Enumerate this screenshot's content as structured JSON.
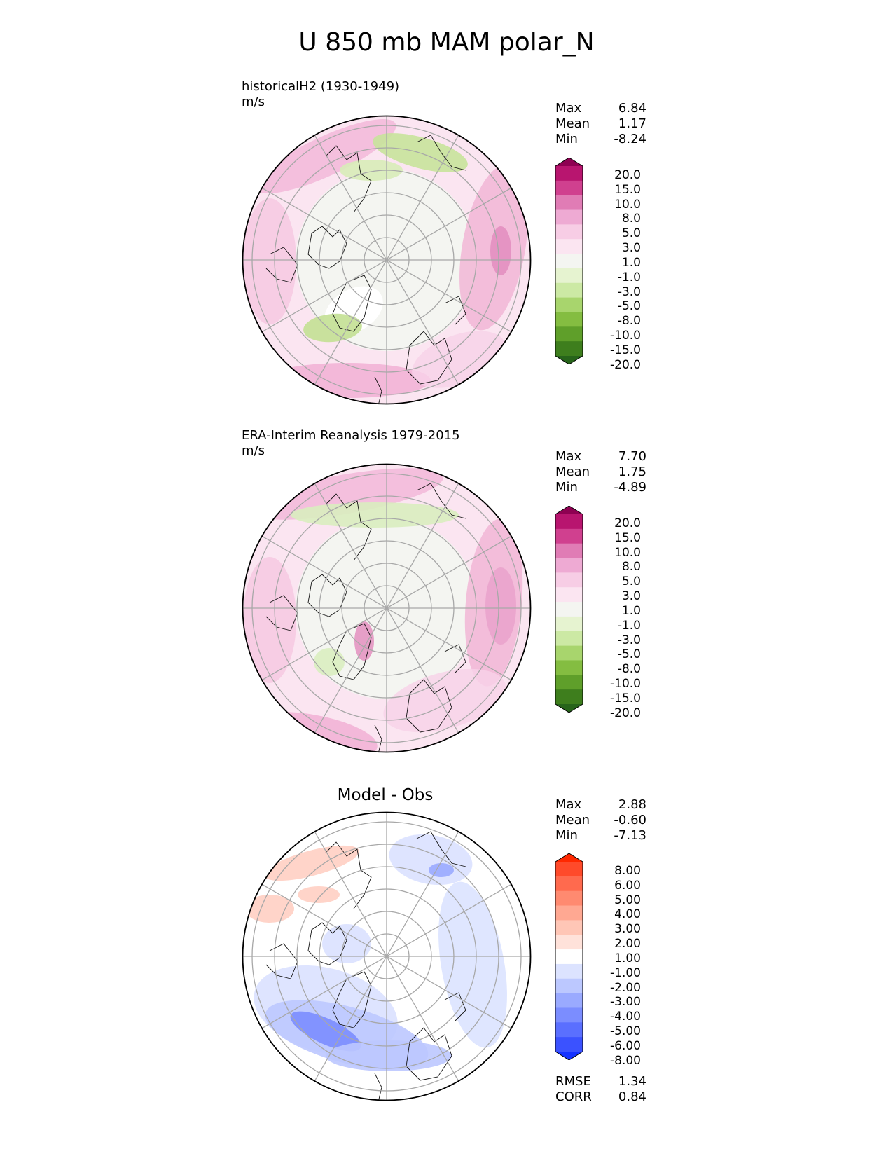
{
  "figure": {
    "title": "U 850 mb MAM polar_N"
  },
  "panels": [
    {
      "id": "model",
      "title": "historicalH2 (1930-1949)",
      "units": "m/s",
      "stats": [
        {
          "label": "Max",
          "value": "6.84"
        },
        {
          "label": "Mean",
          "value": "1.17"
        },
        {
          "label": "Min",
          "value": "-8.24"
        }
      ],
      "colorbar": {
        "labels": [
          "20.0",
          "15.0",
          "10.0",
          "8.0",
          "5.0",
          "3.0",
          "1.0",
          "-1.0",
          "-3.0",
          "-5.0",
          "-8.0",
          "-10.0",
          "-15.0",
          "-20.0"
        ],
        "colors": [
          "#8e0152",
          "#b8156f",
          "#d0408f",
          "#e07cb5",
          "#eeaad3",
          "#f7cde5",
          "#fbe5f1",
          "#f4f5f1",
          "#e6f3d0",
          "#cce9a4",
          "#a8d56d",
          "#84bd41",
          "#5f9f2a",
          "#3e7e1d",
          "#27641a"
        ]
      }
    },
    {
      "id": "obs",
      "title": "ERA-Interim Reanalysis 1979-2015",
      "units": "m/s",
      "stats": [
        {
          "label": "Max",
          "value": "7.70"
        },
        {
          "label": "Mean",
          "value": "1.75"
        },
        {
          "label": "Min",
          "value": "-4.89"
        }
      ],
      "colorbar": {
        "labels": [
          "20.0",
          "15.0",
          "10.0",
          "8.0",
          "5.0",
          "3.0",
          "1.0",
          "-1.0",
          "-3.0",
          "-5.0",
          "-8.0",
          "-10.0",
          "-15.0",
          "-20.0"
        ],
        "colors": [
          "#8e0152",
          "#b8156f",
          "#d0408f",
          "#e07cb5",
          "#eeaad3",
          "#f7cde5",
          "#fbe5f1",
          "#f4f5f1",
          "#e6f3d0",
          "#cce9a4",
          "#a8d56d",
          "#84bd41",
          "#5f9f2a",
          "#3e7e1d",
          "#27641a"
        ]
      }
    },
    {
      "id": "diff",
      "title": "Model - Obs",
      "stats": [
        {
          "label": "Max",
          "value": "2.88"
        },
        {
          "label": "Mean",
          "value": "-0.60"
        },
        {
          "label": "Min",
          "value": "-7.13"
        }
      ],
      "colorbar": {
        "labels": [
          "8.00",
          "6.00",
          "5.00",
          "4.00",
          "3.00",
          "2.00",
          "1.00",
          "-1.00",
          "-2.00",
          "-3.00",
          "-4.00",
          "-5.00",
          "-6.00",
          "-8.00"
        ],
        "colors": [
          "#ff2800",
          "#ff4a2a",
          "#ff6a4e",
          "#ff8a70",
          "#ffa892",
          "#ffc6b6",
          "#ffe2da",
          "#ffffff",
          "#dce3ff",
          "#bcc8ff",
          "#9aaaff",
          "#7b8dff",
          "#5a6fff",
          "#3b52ff",
          "#1532ff"
        ]
      },
      "metrics": [
        {
          "label": "RMSE",
          "value": "1.34"
        },
        {
          "label": "CORR",
          "value": "0.84"
        }
      ]
    }
  ]
}
